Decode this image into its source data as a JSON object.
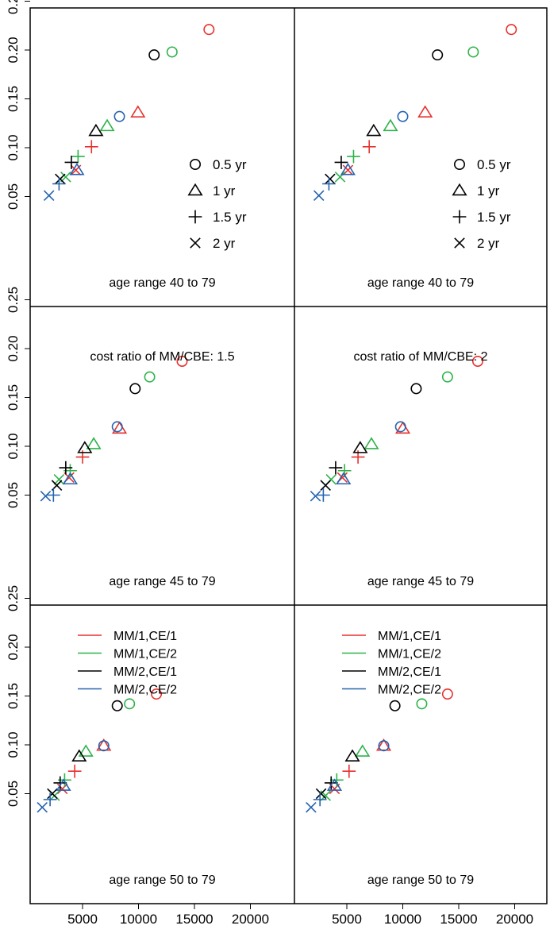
{
  "colors": {
    "MM/1,CE/1": "#e8312f",
    "MM/1,CE/2": "#2db34a",
    "MM/2,CE/1": "#000000",
    "MM/2,CE/2": "#2563b0"
  },
  "series_order": [
    "MM/1,CE/1",
    "MM/1,CE/2",
    "MM/2,CE/1",
    "MM/2,CE/2"
  ],
  "shape_legend": [
    {
      "symbol": "circle",
      "label": "0.5 yr"
    },
    {
      "symbol": "triangle",
      "label": "1 yr"
    },
    {
      "symbol": "plus",
      "label": "1.5 yr"
    },
    {
      "symbol": "cross",
      "label": "2 yr"
    }
  ],
  "chart_data": {
    "type": "scatter",
    "xlim": [
      0,
      25000
    ],
    "ylim": [
      0.025,
      0.26
    ],
    "x_ticks": [
      5000,
      10000,
      15000,
      20000
    ],
    "x_tick_labels": [
      "5000",
      "10000",
      "15000",
      "20000"
    ],
    "y_ticks": [
      0.05,
      0.1,
      0.15,
      0.2,
      0.25
    ],
    "y_tick_labels": [
      "0.05",
      "0.10",
      "0.15",
      "0.20",
      "0.25"
    ],
    "columns": [
      {
        "cost_ratio_label": "cost ratio of MM/CBE: 1.5"
      },
      {
        "cost_ratio_label": "cost ratio of MM/CBE: 2"
      }
    ],
    "rows": [
      {
        "age_label": "age range 40 to 79",
        "show_shape_legend": true,
        "show_color_legend": false
      },
      {
        "age_label": "age range 45 to 79",
        "show_shape_legend": false,
        "show_color_legend": false
      },
      {
        "age_label": "age range 50 to 79",
        "show_shape_legend": false,
        "show_color_legend": true
      }
    ],
    "panels": [
      {
        "row": 0,
        "col": 0,
        "points": [
          {
            "series": "MM/1,CE/1",
            "symbol": "circle",
            "x": 16300,
            "y": 0.221
          },
          {
            "series": "MM/1,CE/1",
            "symbol": "triangle",
            "x": 9950,
            "y": 0.136
          },
          {
            "series": "MM/1,CE/1",
            "symbol": "plus",
            "x": 5800,
            "y": 0.101
          },
          {
            "series": "MM/1,CE/1",
            "symbol": "cross",
            "x": 4400,
            "y": 0.077
          },
          {
            "series": "MM/1,CE/2",
            "symbol": "circle",
            "x": 13000,
            "y": 0.198
          },
          {
            "series": "MM/1,CE/2",
            "symbol": "triangle",
            "x": 7200,
            "y": 0.122
          },
          {
            "series": "MM/1,CE/2",
            "symbol": "plus",
            "x": 4600,
            "y": 0.091
          },
          {
            "series": "MM/1,CE/2",
            "symbol": "cross",
            "x": 3500,
            "y": 0.07
          },
          {
            "series": "MM/2,CE/1",
            "symbol": "circle",
            "x": 11400,
            "y": 0.195
          },
          {
            "series": "MM/2,CE/1",
            "symbol": "triangle",
            "x": 6200,
            "y": 0.117
          },
          {
            "series": "MM/2,CE/1",
            "symbol": "plus",
            "x": 4000,
            "y": 0.085
          },
          {
            "series": "MM/2,CE/1",
            "symbol": "cross",
            "x": 3000,
            "y": 0.068
          },
          {
            "series": "MM/2,CE/2",
            "symbol": "circle",
            "x": 8300,
            "y": 0.132
          },
          {
            "series": "MM/2,CE/2",
            "symbol": "triangle",
            "x": 4500,
            "y": 0.077
          },
          {
            "series": "MM/2,CE/2",
            "symbol": "plus",
            "x": 2900,
            "y": 0.063
          },
          {
            "series": "MM/2,CE/2",
            "symbol": "cross",
            "x": 2000,
            "y": 0.051
          }
        ]
      },
      {
        "row": 0,
        "col": 1,
        "points": [
          {
            "series": "MM/1,CE/1",
            "symbol": "circle",
            "x": 19700,
            "y": 0.221
          },
          {
            "series": "MM/1,CE/1",
            "symbol": "triangle",
            "x": 12000,
            "y": 0.136
          },
          {
            "series": "MM/1,CE/1",
            "symbol": "plus",
            "x": 7000,
            "y": 0.101
          },
          {
            "series": "MM/1,CE/1",
            "symbol": "cross",
            "x": 5100,
            "y": 0.077
          },
          {
            "series": "MM/1,CE/2",
            "symbol": "circle",
            "x": 16300,
            "y": 0.198
          },
          {
            "series": "MM/1,CE/2",
            "symbol": "triangle",
            "x": 8900,
            "y": 0.122
          },
          {
            "series": "MM/1,CE/2",
            "symbol": "plus",
            "x": 5600,
            "y": 0.091
          },
          {
            "series": "MM/1,CE/2",
            "symbol": "cross",
            "x": 4400,
            "y": 0.07
          },
          {
            "series": "MM/2,CE/1",
            "symbol": "circle",
            "x": 13100,
            "y": 0.195
          },
          {
            "series": "MM/2,CE/1",
            "symbol": "triangle",
            "x": 7400,
            "y": 0.117
          },
          {
            "series": "MM/2,CE/1",
            "symbol": "plus",
            "x": 4500,
            "y": 0.085
          },
          {
            "series": "MM/2,CE/1",
            "symbol": "cross",
            "x": 3500,
            "y": 0.068
          },
          {
            "series": "MM/2,CE/2",
            "symbol": "circle",
            "x": 10000,
            "y": 0.132
          },
          {
            "series": "MM/2,CE/2",
            "symbol": "triangle",
            "x": 5100,
            "y": 0.077
          },
          {
            "series": "MM/2,CE/2",
            "symbol": "plus",
            "x": 3400,
            "y": 0.063
          },
          {
            "series": "MM/2,CE/2",
            "symbol": "cross",
            "x": 2500,
            "y": 0.051
          }
        ]
      },
      {
        "row": 1,
        "col": 0,
        "points": [
          {
            "series": "MM/1,CE/1",
            "symbol": "circle",
            "x": 13900,
            "y": 0.187
          },
          {
            "series": "MM/1,CE/1",
            "symbol": "triangle",
            "x": 8300,
            "y": 0.118
          },
          {
            "series": "MM/1,CE/1",
            "symbol": "plus",
            "x": 5000,
            "y": 0.089
          },
          {
            "series": "MM/1,CE/1",
            "symbol": "cross",
            "x": 3800,
            "y": 0.068
          },
          {
            "series": "MM/1,CE/2",
            "symbol": "circle",
            "x": 11000,
            "y": 0.171
          },
          {
            "series": "MM/1,CE/2",
            "symbol": "triangle",
            "x": 6000,
            "y": 0.102
          },
          {
            "series": "MM/1,CE/2",
            "symbol": "plus",
            "x": 3900,
            "y": 0.075
          },
          {
            "series": "MM/1,CE/2",
            "symbol": "cross",
            "x": 2900,
            "y": 0.066
          },
          {
            "series": "MM/2,CE/1",
            "symbol": "circle",
            "x": 9700,
            "y": 0.159
          },
          {
            "series": "MM/2,CE/1",
            "symbol": "triangle",
            "x": 5200,
            "y": 0.098
          },
          {
            "series": "MM/2,CE/1",
            "symbol": "plus",
            "x": 3500,
            "y": 0.078
          },
          {
            "series": "MM/2,CE/1",
            "symbol": "cross",
            "x": 2700,
            "y": 0.06
          },
          {
            "series": "MM/2,CE/2",
            "symbol": "circle",
            "x": 8100,
            "y": 0.12
          },
          {
            "series": "MM/2,CE/2",
            "symbol": "triangle",
            "x": 3900,
            "y": 0.066
          },
          {
            "series": "MM/2,CE/2",
            "symbol": "plus",
            "x": 2400,
            "y": 0.05
          },
          {
            "series": "MM/2,CE/2",
            "symbol": "cross",
            "x": 1700,
            "y": 0.049
          }
        ]
      },
      {
        "row": 1,
        "col": 1,
        "points": [
          {
            "series": "MM/1,CE/1",
            "symbol": "circle",
            "x": 16700,
            "y": 0.187
          },
          {
            "series": "MM/1,CE/1",
            "symbol": "triangle",
            "x": 10000,
            "y": 0.118
          },
          {
            "series": "MM/1,CE/1",
            "symbol": "plus",
            "x": 6000,
            "y": 0.089
          },
          {
            "series": "MM/1,CE/1",
            "symbol": "cross",
            "x": 4600,
            "y": 0.068
          },
          {
            "series": "MM/1,CE/2",
            "symbol": "circle",
            "x": 14000,
            "y": 0.171
          },
          {
            "series": "MM/1,CE/2",
            "symbol": "triangle",
            "x": 7200,
            "y": 0.102
          },
          {
            "series": "MM/1,CE/2",
            "symbol": "plus",
            "x": 4800,
            "y": 0.075
          },
          {
            "series": "MM/1,CE/2",
            "symbol": "cross",
            "x": 3600,
            "y": 0.066
          },
          {
            "series": "MM/2,CE/1",
            "symbol": "circle",
            "x": 11200,
            "y": 0.159
          },
          {
            "series": "MM/2,CE/1",
            "symbol": "triangle",
            "x": 6200,
            "y": 0.098
          },
          {
            "series": "MM/2,CE/1",
            "symbol": "plus",
            "x": 4000,
            "y": 0.078
          },
          {
            "series": "MM/2,CE/1",
            "symbol": "cross",
            "x": 3100,
            "y": 0.06
          },
          {
            "series": "MM/2,CE/2",
            "symbol": "circle",
            "x": 9800,
            "y": 0.12
          },
          {
            "series": "MM/2,CE/2",
            "symbol": "triangle",
            "x": 4700,
            "y": 0.066
          },
          {
            "series": "MM/2,CE/2",
            "symbol": "plus",
            "x": 2900,
            "y": 0.05
          },
          {
            "series": "MM/2,CE/2",
            "symbol": "cross",
            "x": 2200,
            "y": 0.049
          }
        ]
      },
      {
        "row": 2,
        "col": 0,
        "points": [
          {
            "series": "MM/1,CE/1",
            "symbol": "circle",
            "x": 11600,
            "y": 0.152
          },
          {
            "series": "MM/1,CE/1",
            "symbol": "triangle",
            "x": 6900,
            "y": 0.099
          },
          {
            "series": "MM/1,CE/1",
            "symbol": "plus",
            "x": 4300,
            "y": 0.073
          },
          {
            "series": "MM/1,CE/1",
            "symbol": "cross",
            "x": 3200,
            "y": 0.055
          },
          {
            "series": "MM/1,CE/2",
            "symbol": "circle",
            "x": 9200,
            "y": 0.142
          },
          {
            "series": "MM/1,CE/2",
            "symbol": "triangle",
            "x": 5300,
            "y": 0.093
          },
          {
            "series": "MM/1,CE/2",
            "symbol": "plus",
            "x": 3400,
            "y": 0.064
          },
          {
            "series": "MM/1,CE/2",
            "symbol": "cross",
            "x": 2500,
            "y": 0.048
          },
          {
            "series": "MM/2,CE/1",
            "symbol": "circle",
            "x": 8100,
            "y": 0.14
          },
          {
            "series": "MM/2,CE/1",
            "symbol": "triangle",
            "x": 4700,
            "y": 0.088
          },
          {
            "series": "MM/2,CE/1",
            "symbol": "plus",
            "x": 3000,
            "y": 0.061
          },
          {
            "series": "MM/2,CE/1",
            "symbol": "cross",
            "x": 2300,
            "y": 0.05
          },
          {
            "series": "MM/2,CE/2",
            "symbol": "circle",
            "x": 6900,
            "y": 0.099
          },
          {
            "series": "MM/2,CE/2",
            "symbol": "triangle",
            "x": 3300,
            "y": 0.058
          },
          {
            "series": "MM/2,CE/2",
            "symbol": "plus",
            "x": 2100,
            "y": 0.044
          },
          {
            "series": "MM/2,CE/2",
            "symbol": "cross",
            "x": 1400,
            "y": 0.036
          }
        ]
      },
      {
        "row": 2,
        "col": 1,
        "points": [
          {
            "series": "MM/1,CE/1",
            "symbol": "circle",
            "x": 14000,
            "y": 0.152
          },
          {
            "series": "MM/1,CE/1",
            "symbol": "triangle",
            "x": 8300,
            "y": 0.099
          },
          {
            "series": "MM/1,CE/1",
            "symbol": "plus",
            "x": 5200,
            "y": 0.073
          },
          {
            "series": "MM/1,CE/1",
            "symbol": "cross",
            "x": 3900,
            "y": 0.055
          },
          {
            "series": "MM/1,CE/2",
            "symbol": "circle",
            "x": 11700,
            "y": 0.142
          },
          {
            "series": "MM/1,CE/2",
            "symbol": "triangle",
            "x": 6400,
            "y": 0.093
          },
          {
            "series": "MM/1,CE/2",
            "symbol": "plus",
            "x": 4100,
            "y": 0.064
          },
          {
            "series": "MM/1,CE/2",
            "symbol": "cross",
            "x": 3100,
            "y": 0.048
          },
          {
            "series": "MM/2,CE/1",
            "symbol": "circle",
            "x": 9300,
            "y": 0.14
          },
          {
            "series": "MM/2,CE/1",
            "symbol": "triangle",
            "x": 5500,
            "y": 0.088
          },
          {
            "series": "MM/2,CE/1",
            "symbol": "plus",
            "x": 3600,
            "y": 0.061
          },
          {
            "series": "MM/2,CE/1",
            "symbol": "cross",
            "x": 2700,
            "y": 0.05
          },
          {
            "series": "MM/2,CE/2",
            "symbol": "circle",
            "x": 8300,
            "y": 0.099
          },
          {
            "series": "MM/2,CE/2",
            "symbol": "triangle",
            "x": 3900,
            "y": 0.058
          },
          {
            "series": "MM/2,CE/2",
            "symbol": "plus",
            "x": 2600,
            "y": 0.044
          },
          {
            "series": "MM/2,CE/2",
            "symbol": "cross",
            "x": 1800,
            "y": 0.036
          }
        ]
      }
    ]
  }
}
